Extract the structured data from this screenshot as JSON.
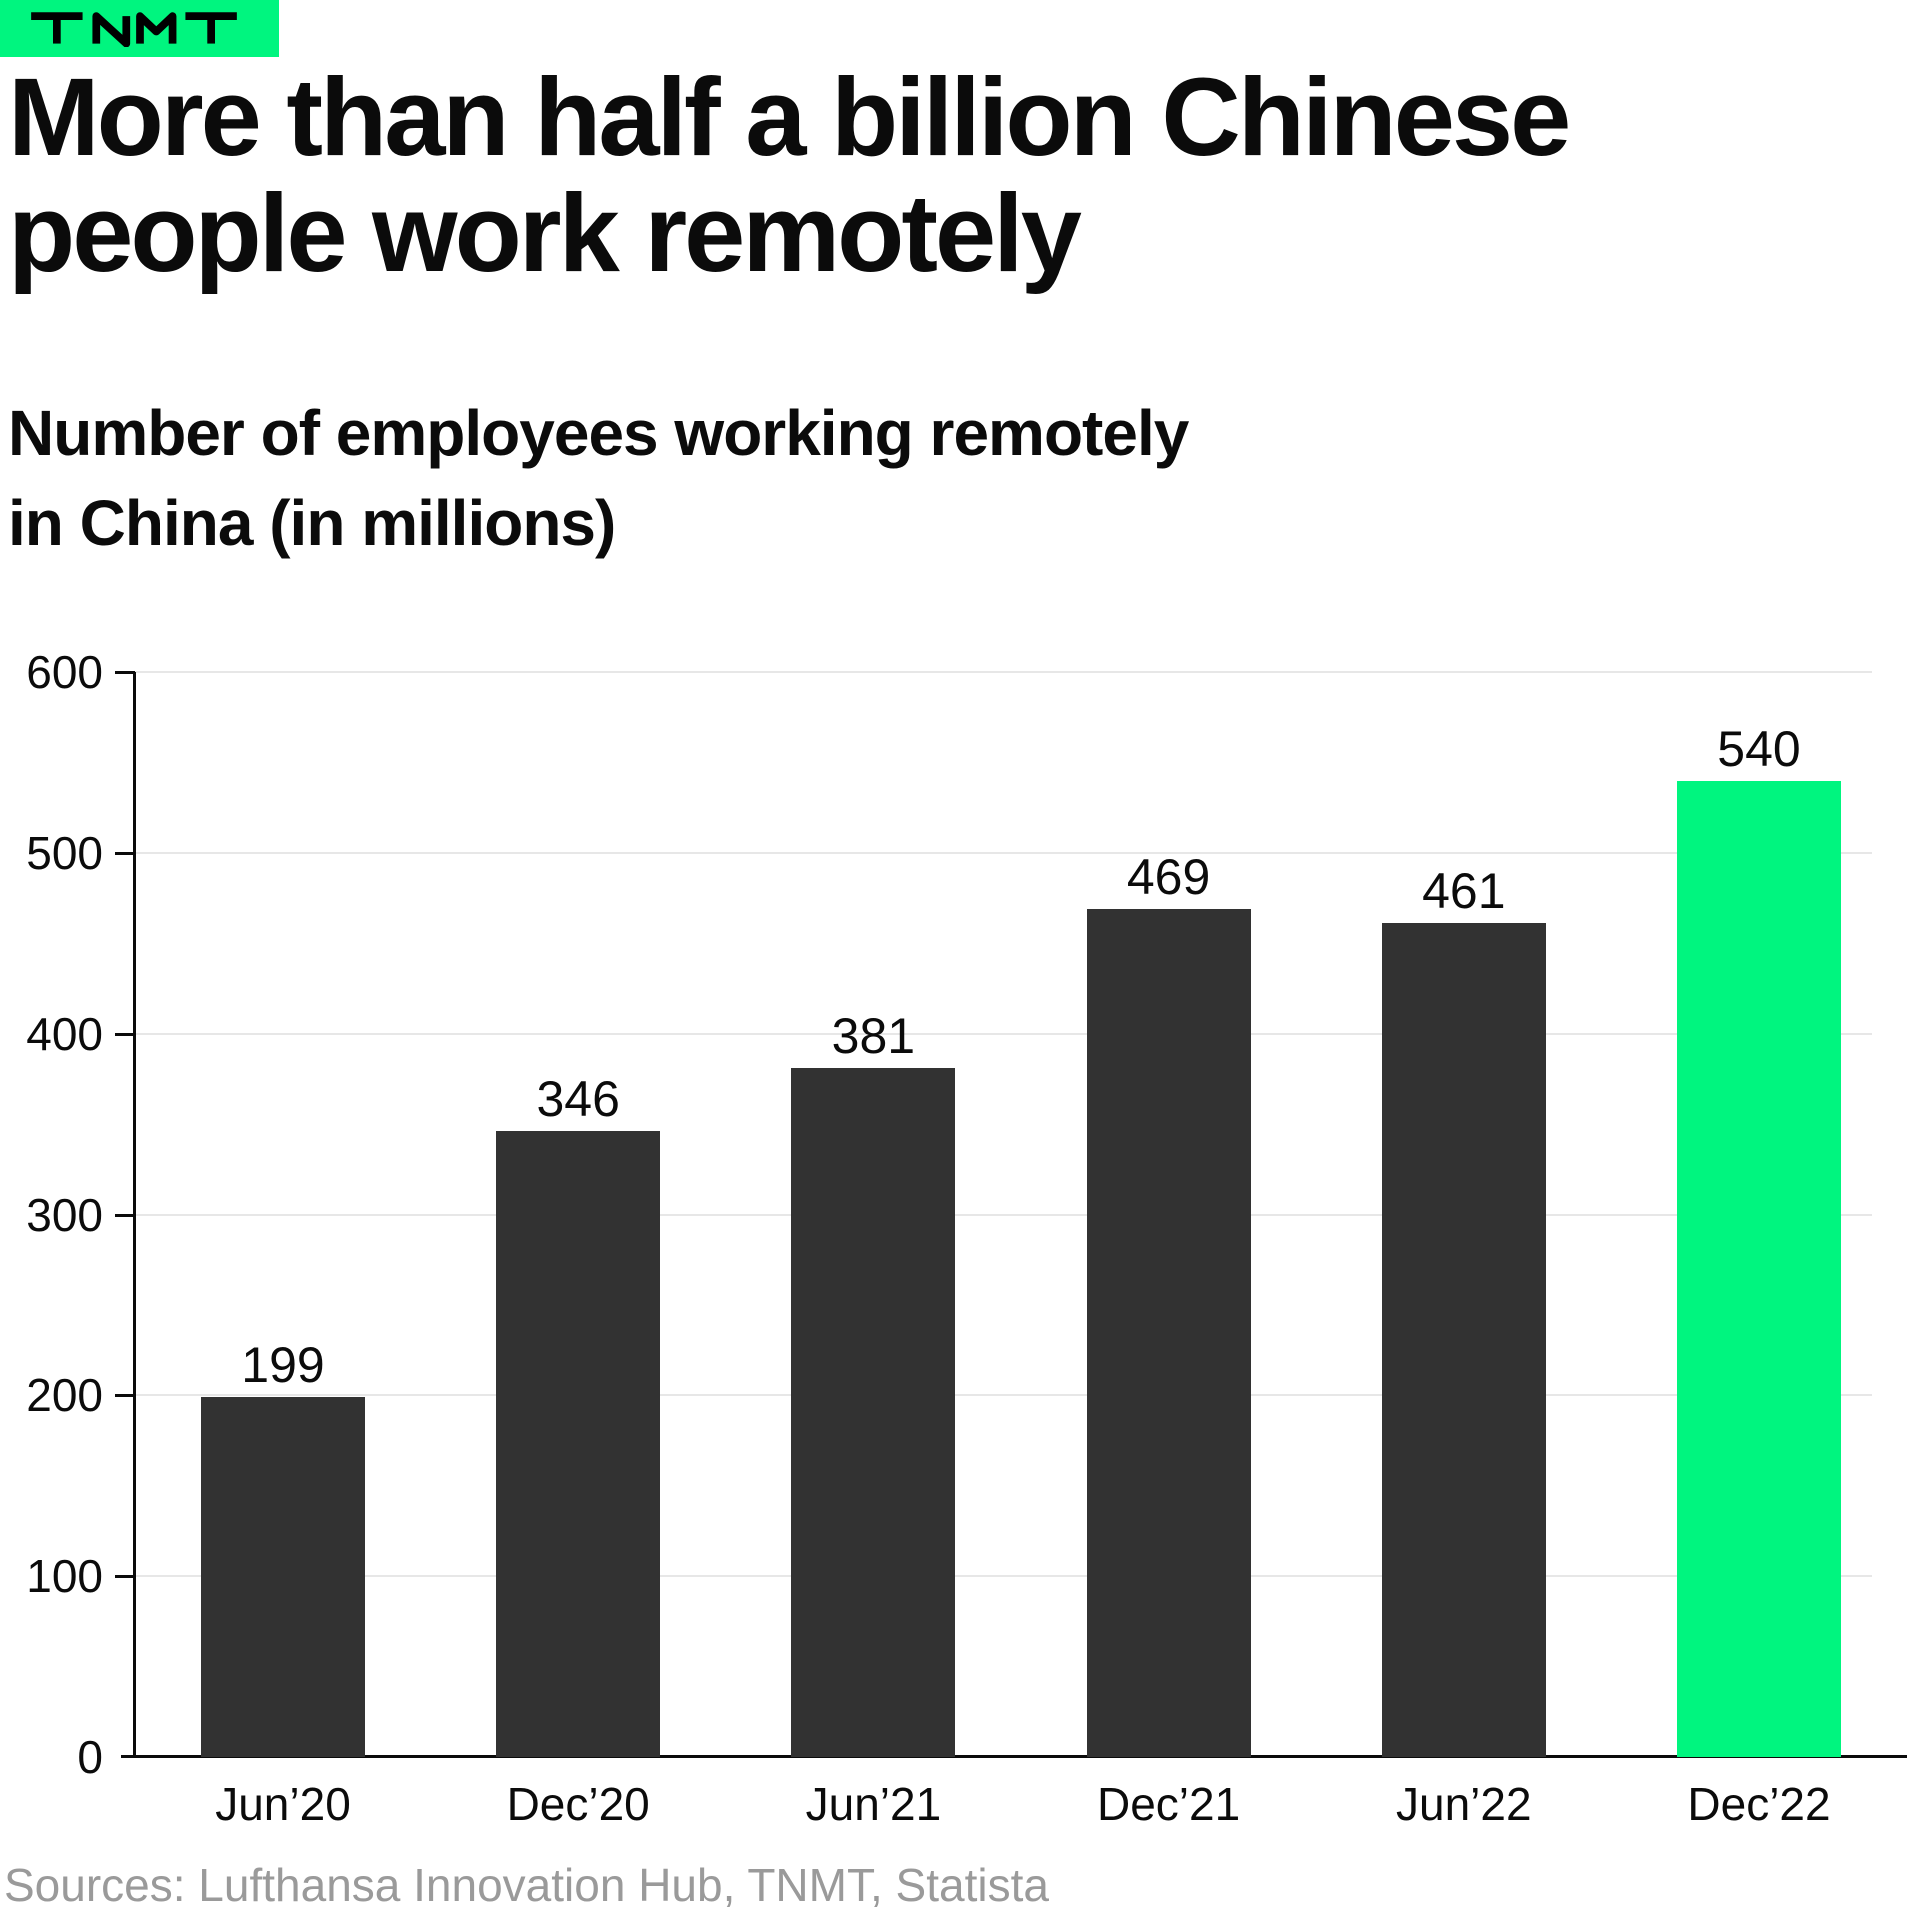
{
  "logo": {
    "text": "TNMT",
    "bg_color": "#00F57F",
    "text_color": "#000000"
  },
  "title": "More than half a billion Chinese\npeople work remotely",
  "subtitle": "Number of employees working remotely\nin China (in millions)",
  "source": "Sources: Lufthansa Innovation Hub, TNMT, Statista",
  "chart_data": {
    "type": "bar",
    "title": "More than half a billion Chinese people work remotely",
    "subtitle": "Number of employees working remotely in China (in millions)",
    "categories": [
      "Jun’20",
      "Dec’20",
      "Jun’21",
      "Dec’21",
      "Jun’22",
      "Dec’22"
    ],
    "values": [
      199,
      346,
      381,
      469,
      461,
      540
    ],
    "value_labels": [
      "199",
      "346",
      "381",
      "469",
      "461",
      "540"
    ],
    "highlight_index": 5,
    "bar_color": "#323232",
    "highlight_color": "#00F57F",
    "grid_color": "#e7e7e7",
    "axis_color": "#0b0b0b",
    "xlabel": "",
    "ylabel": "",
    "ylim": [
      0,
      600
    ],
    "yticks": [
      0,
      100,
      200,
      300,
      400,
      500,
      600
    ],
    "grid": true,
    "legend": false
  }
}
